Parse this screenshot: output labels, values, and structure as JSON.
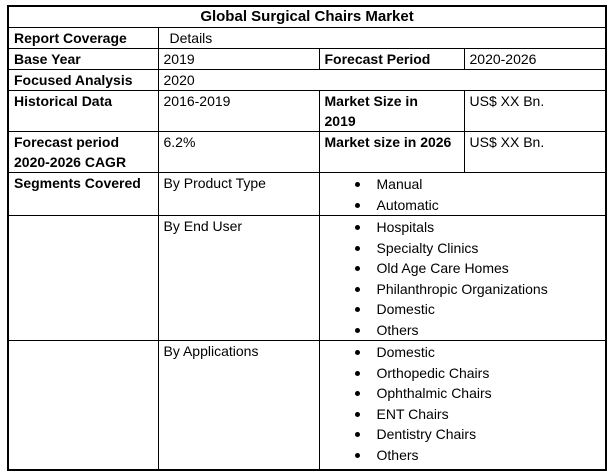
{
  "title": "Global Surgical Chairs Market",
  "coverage": {
    "label": "Report Coverage",
    "value": "Details"
  },
  "base_year": {
    "label": "Base Year",
    "value": "2019"
  },
  "forecast_period": {
    "label": "Forecast Period",
    "value": "2020-2026"
  },
  "focused_analysis": {
    "label": "Focused Analysis",
    "value": "2020"
  },
  "historical_data": {
    "label": "Historical Data",
    "value": "2016-2019"
  },
  "market_size_2019": {
    "label": "Market Size in 2019",
    "value": "US$ XX Bn."
  },
  "forecast_cagr": {
    "label": "Forecast period 2020-2026 CAGR",
    "value": "6.2%"
  },
  "market_size_2026": {
    "label": "Market size in 2026",
    "value": "US$ XX Bn."
  },
  "segments": {
    "label": "Segments Covered",
    "groups": [
      {
        "name": "By Product Type",
        "items": [
          "Manual",
          "Automatic"
        ]
      },
      {
        "name": "By End User",
        "items": [
          "Hospitals",
          "Specialty Clinics",
          "Old Age Care Homes",
          "Philanthropic Organizations",
          "Domestic",
          "Others"
        ]
      },
      {
        "name": "By Applications",
        "items": [
          "Domestic",
          "Orthopedic Chairs",
          "Ophthalmic Chairs",
          "ENT Chairs",
          "Dentistry Chairs",
          "Others"
        ]
      }
    ]
  },
  "colors": {
    "border": "#000000",
    "text": "#000000",
    "background": "#ffffff"
  }
}
